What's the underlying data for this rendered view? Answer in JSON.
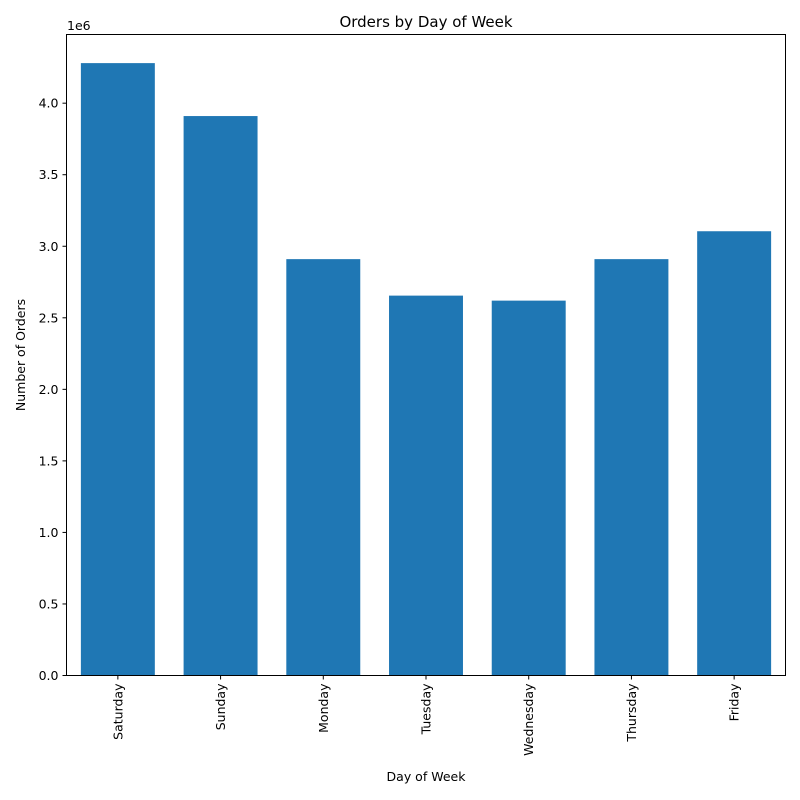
{
  "chart_data": {
    "type": "bar",
    "title": "Orders by Day of Week",
    "xlabel": "Day of Week",
    "ylabel": "Number of Orders",
    "scale_label": "1e6",
    "categories": [
      "Saturday",
      "Sunday",
      "Monday",
      "Tuesday",
      "Wednesday",
      "Thursday",
      "Friday"
    ],
    "values": [
      4280000,
      3910000,
      2910000,
      2655000,
      2620000,
      2910000,
      3105000
    ],
    "ylim": [
      0,
      4480000
    ],
    "yticks": [
      0,
      500000,
      1000000,
      1500000,
      2000000,
      2500000,
      3000000,
      3500000,
      4000000
    ],
    "ytick_labels": [
      "0.0",
      "0.5",
      "1.0",
      "1.5",
      "2.0",
      "2.5",
      "3.0",
      "3.5",
      "4.0"
    ],
    "bar_color": "#1f77b4",
    "grid": false,
    "legend": "none"
  }
}
